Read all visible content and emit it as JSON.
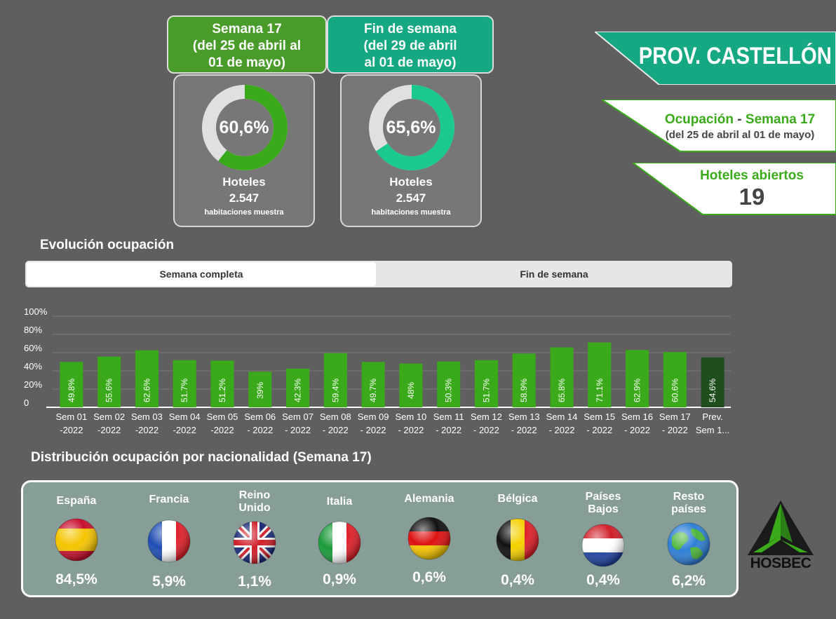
{
  "week_card": {
    "title": "Semana 17\n(del 25 de abril al\n01 de mayo)",
    "occupancy": 60.6,
    "occupancy_label": "60,6%",
    "ring_color": "#3aaa1a",
    "hotels_label": "Hoteles",
    "rooms": "2.547",
    "rooms_label": "habitaciones muestra"
  },
  "weekend_card": {
    "title": "Fin de semana\n(del 29 de abril\nal 01 de mayo)",
    "occupancy": 65.6,
    "occupancy_label": "65,6%",
    "ring_color": "#1ac890",
    "hotels_label": "Hoteles",
    "rooms": "2.547",
    "rooms_label": "habitaciones muestra"
  },
  "province": {
    "title": "PROV. CASTELLÓN",
    "color": "#16a883"
  },
  "occupancy_panel": {
    "label": "Ocupación",
    "dash": "-",
    "week": "Semana 17",
    "range": "(del 25 de abril al 01 de mayo)"
  },
  "open_hotels": {
    "label": "Hoteles abiertos",
    "value": "19"
  },
  "evolution": {
    "title": "Evolución ocupación",
    "tabs": [
      "Semana completa",
      "Fin de semana"
    ],
    "active_tab": 0
  },
  "chart_data": {
    "type": "bar",
    "title": "Evolución ocupación",
    "y_ticks": [
      "100%",
      "80%",
      "60%",
      "40%",
      "20%",
      "0"
    ],
    "ylim": [
      0,
      100
    ],
    "categories": [
      [
        "Sem 01",
        "-2022"
      ],
      [
        "Sem 02",
        "-2022"
      ],
      [
        "Sem 03",
        "-2022"
      ],
      [
        "Sem 04",
        "-2022"
      ],
      [
        "Sem 05",
        "-2022"
      ],
      [
        "Sem 06",
        "- 2022"
      ],
      [
        "Sem 07",
        "- 2022"
      ],
      [
        "Sem 08",
        "- 2022"
      ],
      [
        "Sem 09",
        "- 2022"
      ],
      [
        "Sem 10",
        "- 2022"
      ],
      [
        "Sem 11",
        "- 2022"
      ],
      [
        "Sem 12",
        "- 2022"
      ],
      [
        "Sem 13",
        "- 2022"
      ],
      [
        "Sem 14",
        "- 2022"
      ],
      [
        "Sem 15",
        "- 2022"
      ],
      [
        "Sem 16",
        "- 2022"
      ],
      [
        "Sem 17",
        "- 2022"
      ],
      [
        "Prev.",
        "Sem 1..."
      ]
    ],
    "values": [
      49.8,
      55.6,
      62.6,
      51.7,
      51.2,
      39,
      42.3,
      59.4,
      49.7,
      48,
      50.3,
      51.7,
      58.9,
      65.8,
      71.1,
      62.9,
      60.6,
      54.6
    ],
    "labels": [
      "49.8%",
      "55.6%",
      "62.6%",
      "51.7%",
      "51.2%",
      "39%",
      "42.3%",
      "59.4%",
      "49.7%",
      "48%",
      "50.3%",
      "51.7%",
      "58.9%",
      "65.8%",
      "71.1%",
      "62.9%",
      "60.6%",
      "54.6%"
    ],
    "bar_color": "#3aaa1a",
    "forecast_color": "#1f4f1f"
  },
  "nationality": {
    "title": "Distribución ocupación por nacionalidad (Semana 17)",
    "items": [
      {
        "name": "España",
        "value": "84,5%",
        "flag": "spain-flag-icon"
      },
      {
        "name": "Francia",
        "value": "5,9%",
        "flag": "france-flag-icon"
      },
      {
        "name": "Reino\nUnido",
        "value": "1,1%",
        "flag": "uk-flag-icon"
      },
      {
        "name": "Italia",
        "value": "0,9%",
        "flag": "italy-flag-icon"
      },
      {
        "name": "Alemania",
        "value": "0,6%",
        "flag": "germany-flag-icon"
      },
      {
        "name": "Bélgica",
        "value": "0,4%",
        "flag": "belgium-flag-icon"
      },
      {
        "name": "Países\nBajos",
        "value": "0,4%",
        "flag": "netherlands-flag-icon"
      },
      {
        "name": "Resto\npaíses",
        "value": "6,2%",
        "flag": "globe-icon"
      }
    ]
  },
  "logo": {
    "text": "HOSBEC"
  }
}
